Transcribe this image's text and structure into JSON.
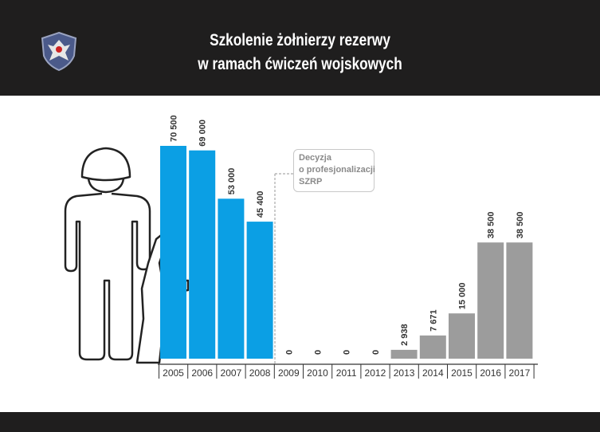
{
  "header": {
    "title_line1": "Szkolenie żołnierzy rezerwy",
    "title_line2": "w ramach ćwiczeń wojskowych"
  },
  "annotation": {
    "line1": "Decyzja",
    "line2": "o profesjonalizacji",
    "line3": "SZRP"
  },
  "colors": {
    "header_bg": "#1f1e1e",
    "bar_before": "#0b9fe4",
    "bar_after": "#9c9c9c",
    "label_text": "#333333"
  },
  "chart_data": {
    "type": "bar",
    "title": "Szkolenie żołnierzy rezerwy w ramach ćwiczeń wojskowych",
    "categories": [
      "2005",
      "2006",
      "2007",
      "2008",
      "2009",
      "2010",
      "2011",
      "2012",
      "2013",
      "2014",
      "2015",
      "2016",
      "2017"
    ],
    "values": [
      70500,
      69000,
      53000,
      45400,
      0,
      0,
      0,
      0,
      2938,
      7671,
      15000,
      38500,
      38500
    ],
    "value_labels": [
      "70 500",
      "69 000",
      "53 000",
      "45 400",
      "0",
      "0",
      "0",
      "0",
      "2 938",
      "7 671",
      "15 000",
      "38 500",
      "38 500"
    ],
    "ylim": [
      0,
      70500
    ],
    "grid": false,
    "legend": "none",
    "bar_group": [
      "blue",
      "blue",
      "blue",
      "blue",
      "none",
      "none",
      "none",
      "none",
      "gray",
      "gray",
      "gray",
      "gray",
      "gray"
    ]
  }
}
